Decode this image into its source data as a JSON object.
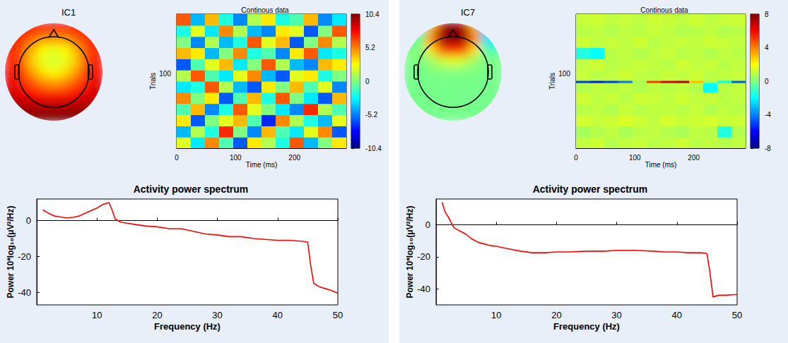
{
  "chart_data": [
    {
      "type": "topography",
      "title": "IC1",
      "scalp_map": {
        "range": [
          -1,
          1
        ],
        "cells": [
          [
            0.75,
            0.75,
            0.75,
            0.75,
            0.75,
            0.75,
            0.75,
            0.75,
            0.75
          ],
          [
            0.7,
            0.65,
            0.55,
            0.45,
            0.45,
            0.45,
            0.55,
            0.65,
            0.7
          ],
          [
            0.7,
            0.6,
            0.4,
            0.25,
            0.2,
            0.25,
            0.4,
            0.6,
            0.7
          ],
          [
            0.7,
            0.6,
            0.35,
            0.2,
            0.15,
            0.2,
            0.35,
            0.6,
            0.7
          ],
          [
            0.75,
            0.65,
            0.45,
            0.3,
            0.25,
            0.3,
            0.45,
            0.65,
            0.75
          ],
          [
            0.8,
            0.7,
            0.6,
            0.5,
            0.45,
            0.5,
            0.6,
            0.7,
            0.8
          ],
          [
            0.85,
            0.8,
            0.75,
            0.7,
            0.7,
            0.7,
            0.75,
            0.8,
            0.85
          ],
          [
            0.95,
            0.9,
            0.9,
            0.88,
            0.88,
            0.88,
            0.9,
            0.9,
            0.95
          ],
          [
            1,
            1,
            1,
            1,
            1,
            1,
            1,
            1,
            1
          ]
        ]
      }
    },
    {
      "type": "heatmap",
      "title": "Continous data",
      "x_label": "Time (ms)",
      "y_label": "Trials",
      "xlim": [
        0,
        288
      ],
      "xticks": [
        0,
        100,
        200
      ],
      "ylim": [
        0,
        180
      ],
      "yticks": [
        100
      ],
      "grid": false,
      "time_edges": [
        0,
        24,
        48,
        72,
        96,
        120,
        144,
        168,
        192,
        216,
        240,
        264,
        288
      ],
      "trial_edges": [
        0,
        15,
        30,
        45,
        60,
        75,
        90,
        105,
        120,
        135,
        150,
        165,
        180
      ],
      "cells": [
        [
          2,
          -3,
          5,
          -1,
          -6,
          3,
          1,
          -2,
          6,
          -4,
          0,
          3
        ],
        [
          -4,
          1,
          -2,
          7,
          0,
          -5,
          4,
          -1,
          -3,
          2,
          5,
          -6
        ],
        [
          3,
          -6,
          0,
          2,
          4,
          -1,
          -7,
          5,
          1,
          -2,
          -4,
          2
        ],
        [
          -1,
          4,
          -5,
          -2,
          6,
          2,
          0,
          -3,
          -5,
          7,
          1,
          -1
        ],
        [
          5,
          0,
          3,
          -6,
          -1,
          4,
          -2,
          6,
          0,
          -3,
          -6,
          4
        ],
        [
          -3,
          -2,
          6,
          1,
          -4,
          -6,
          3,
          0,
          4,
          -1,
          2,
          -5
        ],
        [
          1,
          6,
          -1,
          -3,
          2,
          5,
          -4,
          -6,
          2,
          3,
          -2,
          0
        ],
        [
          -6,
          -1,
          2,
          4,
          -3,
          0,
          6,
          1,
          -4,
          -5,
          4,
          3
        ],
        [
          4,
          3,
          -4,
          0,
          5,
          -2,
          -1,
          -5,
          3,
          6,
          -3,
          -2
        ],
        [
          0,
          -5,
          1,
          -4,
          -2,
          6,
          2,
          4,
          -6,
          0,
          5,
          1
        ],
        [
          -2,
          2,
          -3,
          5,
          1,
          -4,
          -5,
          3,
          2,
          -6,
          0,
          6
        ],
        [
          6,
          -4,
          4,
          -2,
          -5,
          1,
          3,
          -2,
          -1,
          4,
          -5,
          -3
        ]
      ],
      "colorbar": {
        "range": [
          -10.4,
          10.4
        ],
        "ticks": [
          -10.4,
          -5.2,
          0,
          5.2,
          10.4
        ]
      }
    },
    {
      "type": "line",
      "title": "Activity power spectrum",
      "x_label": "Frequency (Hz)",
      "y_label": "Power 10*log₁₀(μV²/Hz)",
      "color": "#ff0000",
      "xlim": [
        0,
        50
      ],
      "xticks": [
        10,
        20,
        30,
        40,
        50
      ],
      "ylim": [
        -47,
        12
      ],
      "yticks": [
        -40,
        -20,
        0
      ],
      "grid": false,
      "x": [
        1,
        2,
        3,
        4,
        5,
        6,
        7,
        8,
        9,
        10,
        11,
        12,
        12.5,
        13,
        14,
        15,
        16,
        18,
        20,
        22,
        24,
        26,
        28,
        30,
        32,
        34,
        36,
        38,
        40,
        42,
        44,
        45,
        45.5,
        46,
        47,
        48,
        49,
        50
      ],
      "values": [
        6,
        4,
        2.5,
        2,
        1.5,
        1.8,
        2.5,
        4,
        5.5,
        7,
        9,
        10,
        6,
        1,
        -1,
        -1.5,
        -2,
        -3,
        -3.5,
        -4.5,
        -4.5,
        -6,
        -7.5,
        -8,
        -9,
        -9,
        -10,
        -10.5,
        -11,
        -11,
        -11.5,
        -12,
        -25,
        -35,
        -37,
        -38,
        -39,
        -40.5
      ]
    },
    {
      "type": "topography",
      "title": "IC7",
      "scalp_map": {
        "range": [
          -1,
          1
        ],
        "cells": [
          [
            -0.3,
            -0.2,
            0.4,
            0.9,
            1,
            0.9,
            0.4,
            -0.4,
            -0.5
          ],
          [
            -0.1,
            0,
            0.5,
            0.95,
            1,
            0.95,
            0.5,
            -0.3,
            -0.3
          ],
          [
            0,
            0,
            0.3,
            0.6,
            0.7,
            0.6,
            0.3,
            -0.1,
            -0.1
          ],
          [
            0,
            0,
            0.05,
            0.15,
            0.2,
            0.15,
            0.05,
            0,
            0
          ],
          [
            -0.02,
            -0.02,
            0,
            0,
            0,
            0,
            0,
            -0.02,
            -0.02
          ],
          [
            -0.02,
            -0.02,
            -0.02,
            -0.02,
            -0.02,
            -0.02,
            -0.02,
            -0.02,
            -0.02
          ],
          [
            -0.02,
            -0.02,
            -0.02,
            -0.02,
            -0.02,
            -0.02,
            -0.02,
            -0.02,
            -0.02
          ],
          [
            -0.02,
            -0.02,
            -0.02,
            -0.02,
            -0.02,
            -0.02,
            -0.02,
            -0.02,
            -0.02
          ],
          [
            -0.02,
            -0.02,
            -0.02,
            -0.02,
            -0.02,
            -0.02,
            -0.02,
            -0.02,
            -0.02
          ]
        ]
      }
    },
    {
      "type": "heatmap",
      "title": "Continous data",
      "x_label": "Time (ms)",
      "y_label": "Trials",
      "xlim": [
        0,
        288
      ],
      "xticks": [
        0,
        100,
        200
      ],
      "ylim": [
        0,
        180
      ],
      "yticks": [
        100
      ],
      "grid": false,
      "time_edges": [
        0,
        24,
        48,
        72,
        96,
        120,
        144,
        168,
        192,
        216,
        240,
        264,
        288
      ],
      "trial_edges": [
        0,
        15,
        30,
        45,
        60,
        75,
        88,
        91,
        105,
        120,
        135,
        150,
        165,
        180
      ],
      "cells": [
        [
          1,
          1.2,
          0.8,
          1,
          1.1,
          0.9,
          1,
          1.2,
          0.9,
          1,
          0.8,
          1
        ],
        [
          0.6,
          0.8,
          1,
          0.7,
          0.9,
          1,
          0.8,
          0.7,
          1,
          0.9,
          -1.5,
          0.8
        ],
        [
          1.3,
          1.1,
          1.2,
          1.4,
          1.2,
          1,
          1.3,
          1.1,
          1.2,
          1.3,
          1.1,
          1.2
        ],
        [
          0.9,
          1,
          0.8,
          1.1,
          0.9,
          1,
          1,
          0.9,
          1.1,
          0.8,
          1,
          0.9
        ],
        [
          1.2,
          1,
          1.1,
          0.9,
          1.2,
          1.1,
          1,
          1.2,
          1,
          1.1,
          0.9,
          1
        ],
        [
          0.8,
          1,
          0.9,
          1,
          0.8,
          1,
          0.9,
          1,
          0.8,
          -2,
          0.9,
          1
        ],
        [
          -5,
          -5.5,
          -5,
          -4,
          0.5,
          5,
          6.5,
          7,
          3,
          0.5,
          -2,
          -4.5
        ],
        [
          1.1,
          0.9,
          1,
          1.2,
          1,
          0.9,
          1.1,
          1,
          1.2,
          0.9,
          1,
          1.1
        ],
        [
          1,
          1.2,
          0.9,
          1,
          1.1,
          1,
          0.9,
          1.2,
          1,
          1.1,
          0.9,
          1
        ],
        [
          -1.5,
          -2,
          0.9,
          1,
          0.8,
          1,
          1.1,
          0.9,
          1,
          0.8,
          1,
          0.9
        ],
        [
          1.2,
          1,
          1.1,
          1,
          1.2,
          0.9,
          1,
          1.1,
          1,
          1.2,
          1.1,
          1
        ],
        [
          0.9,
          1,
          0.8,
          1,
          0.9,
          1.1,
          1,
          0.8,
          0.9,
          1,
          0.8,
          0.9
        ],
        [
          1.1,
          1.2,
          1,
          1.1,
          1,
          1.2,
          1.1,
          1,
          1.2,
          1,
          1.1,
          1.2
        ]
      ],
      "colorbar": {
        "range": [
          -8,
          8
        ],
        "ticks": [
          -8,
          -4,
          0,
          4,
          8
        ]
      }
    },
    {
      "type": "line",
      "title": "Activity power spectrum",
      "x_label": "Frequency (Hz)",
      "y_label": "Power 10*log₁₀(μV²/Hz)",
      "color": "#ff0000",
      "xlim": [
        0,
        50
      ],
      "xticks": [
        10,
        20,
        30,
        40,
        50
      ],
      "ylim": [
        -50,
        16
      ],
      "yticks": [
        -40,
        -20,
        0
      ],
      "grid": false,
      "x": [
        1,
        1.5,
        2,
        3,
        4,
        5,
        6,
        7,
        8,
        9,
        10,
        12,
        14,
        16,
        18,
        20,
        22,
        25,
        28,
        30,
        33,
        36,
        38,
        40,
        42,
        44,
        45,
        45.5,
        46,
        47,
        48,
        50
      ],
      "values": [
        14,
        8,
        5,
        -2,
        -4,
        -6,
        -9,
        -11,
        -12,
        -13,
        -13.5,
        -15,
        -16.5,
        -17.5,
        -17.5,
        -17,
        -17,
        -16.5,
        -16.5,
        -16,
        -16,
        -16.5,
        -17,
        -17,
        -17.5,
        -17.5,
        -18,
        -30,
        -45,
        -44,
        -44,
        -43.5
      ]
    }
  ]
}
